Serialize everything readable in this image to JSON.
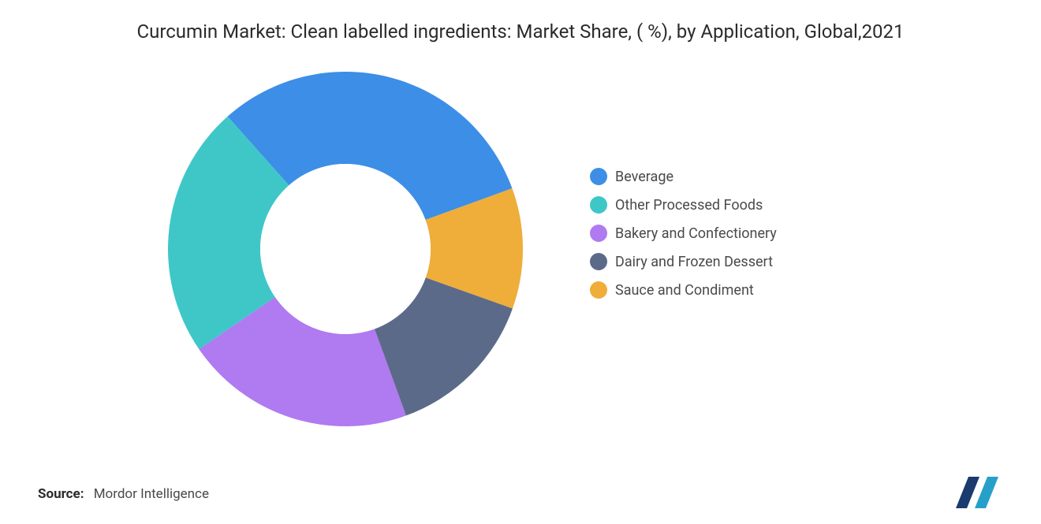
{
  "title": "Curcumin Market: Clean labelled ingredients: Market Share, ( %), by Application, Global,2021",
  "chart": {
    "type": "donut",
    "outer_radius": 225,
    "inner_radius": 108,
    "background_color": "#ffffff",
    "start_angle_deg": -20,
    "title_fontsize": 24,
    "title_color": "#2b2b2b",
    "legend_fontsize": 18,
    "legend_color": "#4a4a4a",
    "slices": [
      {
        "label": "Beverage",
        "value": 31,
        "color": "#3d8ee6"
      },
      {
        "label": "Other Processed Foods",
        "value": 23,
        "color": "#3fc7c8"
      },
      {
        "label": "Bakery and Confectionery",
        "value": 21,
        "color": "#b07af0"
      },
      {
        "label": "Dairy and Frozen Dessert",
        "value": 14,
        "color": "#5c6a8a"
      },
      {
        "label": "Sauce and Condiment",
        "value": 11,
        "color": "#efad3a"
      }
    ]
  },
  "source": {
    "label": "Source:",
    "name": "Mordor Intelligence"
  },
  "logo": {
    "bars": [
      "#1b3b6f",
      "#27a0c9"
    ],
    "background": "#ffffff"
  }
}
